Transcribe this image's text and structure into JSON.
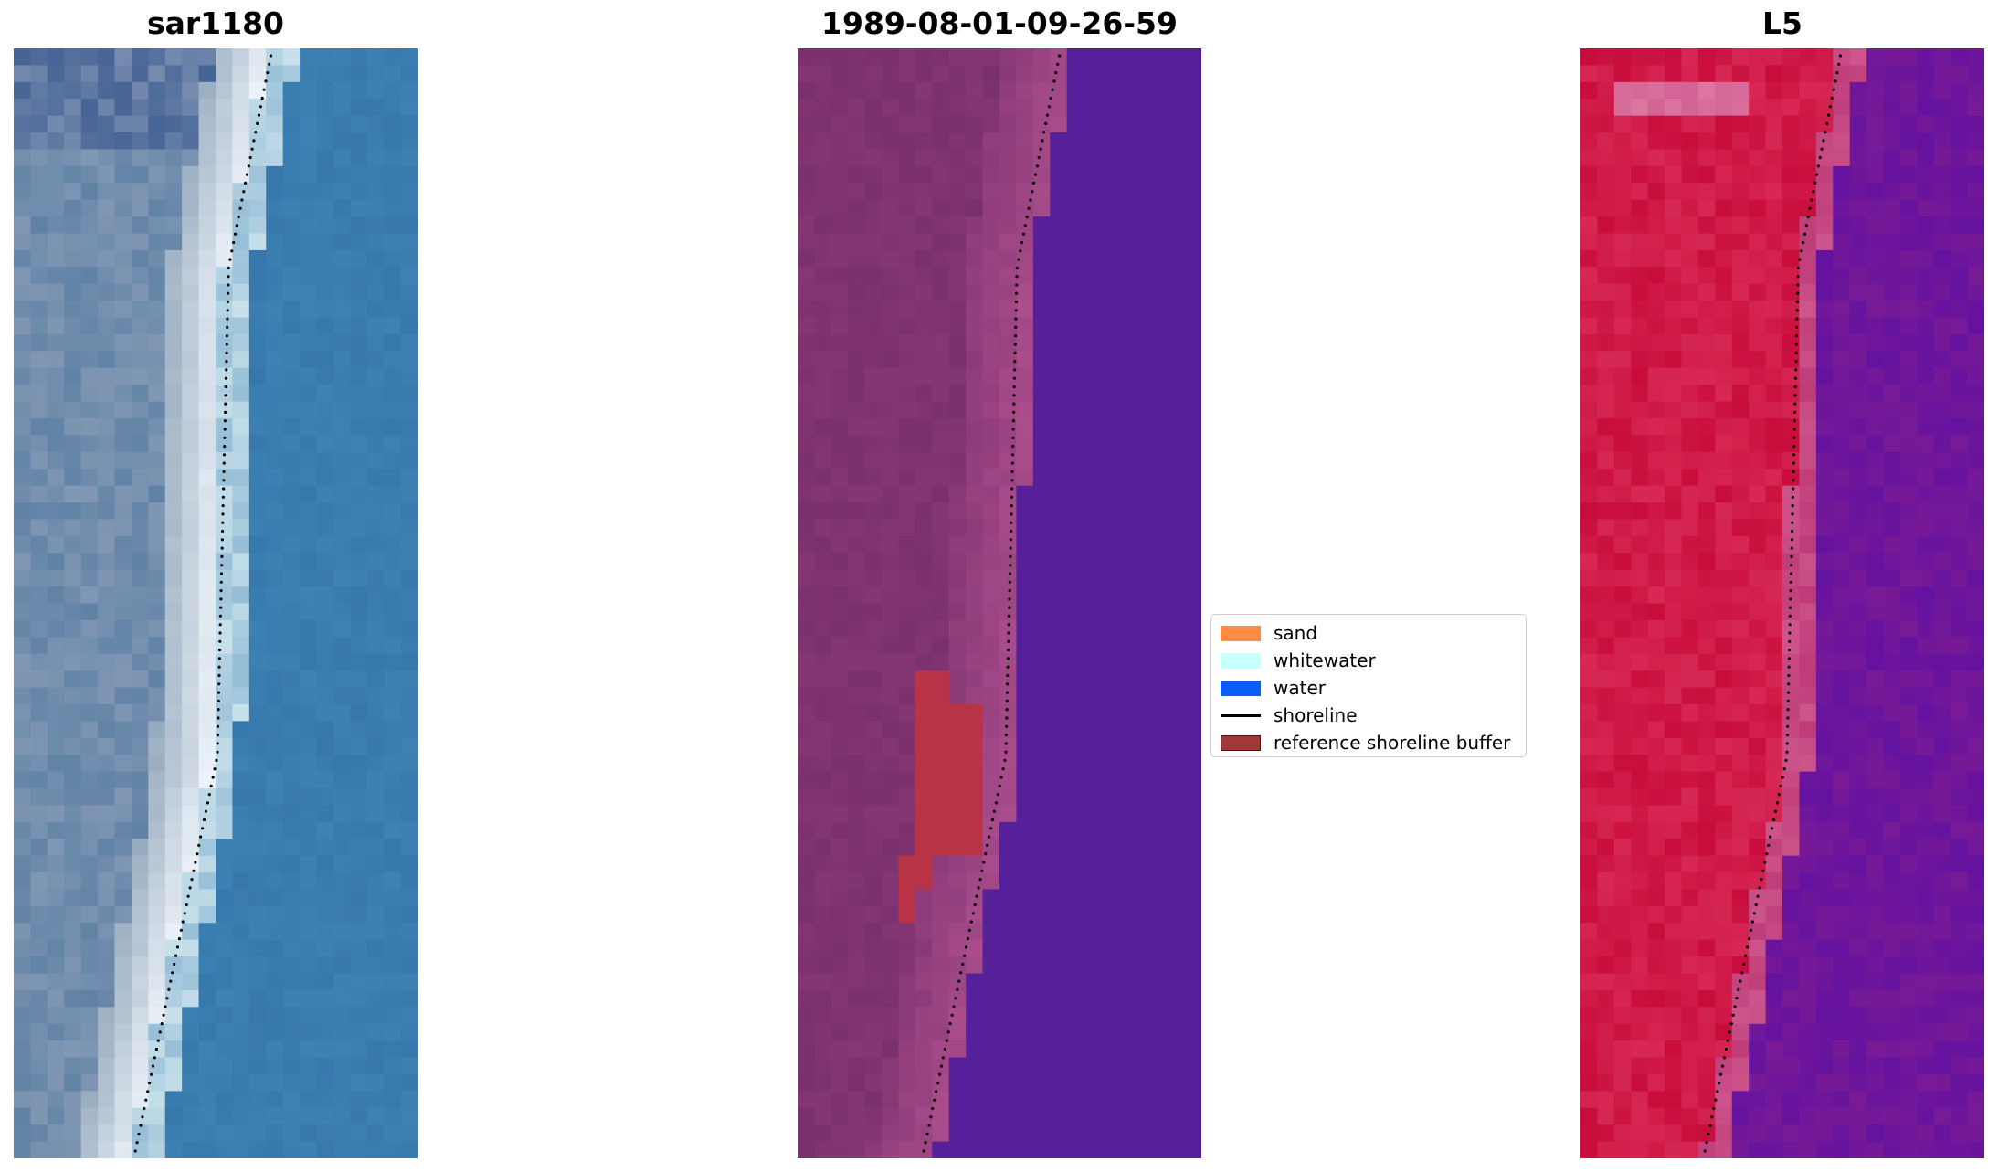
{
  "panels": [
    {
      "title": "sar1180",
      "name": "panel-rgb"
    },
    {
      "title": "1989-08-01-09-26-59",
      "name": "panel-classified"
    },
    {
      "title": "L5",
      "name": "panel-index"
    }
  ],
  "legend": {
    "items": [
      {
        "label": "sand",
        "kind": "patch",
        "color": "#ff8c42"
      },
      {
        "label": "whitewater",
        "kind": "patch",
        "color": "#c8ffff"
      },
      {
        "label": "water",
        "kind": "patch",
        "color": "#0a5cff"
      },
      {
        "label": "shoreline",
        "kind": "line",
        "color": "#000000"
      },
      {
        "label": "reference shoreline buffer",
        "kind": "patch",
        "color": "#a03838"
      }
    ]
  },
  "colors": {
    "classified_water": "#55209a",
    "classified_land_dark": "#6f2a66",
    "classified_land_light": "#b0508f",
    "reference_buffer": "#b93347",
    "index_land": "#c8174a",
    "index_water": "#6c129e"
  }
}
